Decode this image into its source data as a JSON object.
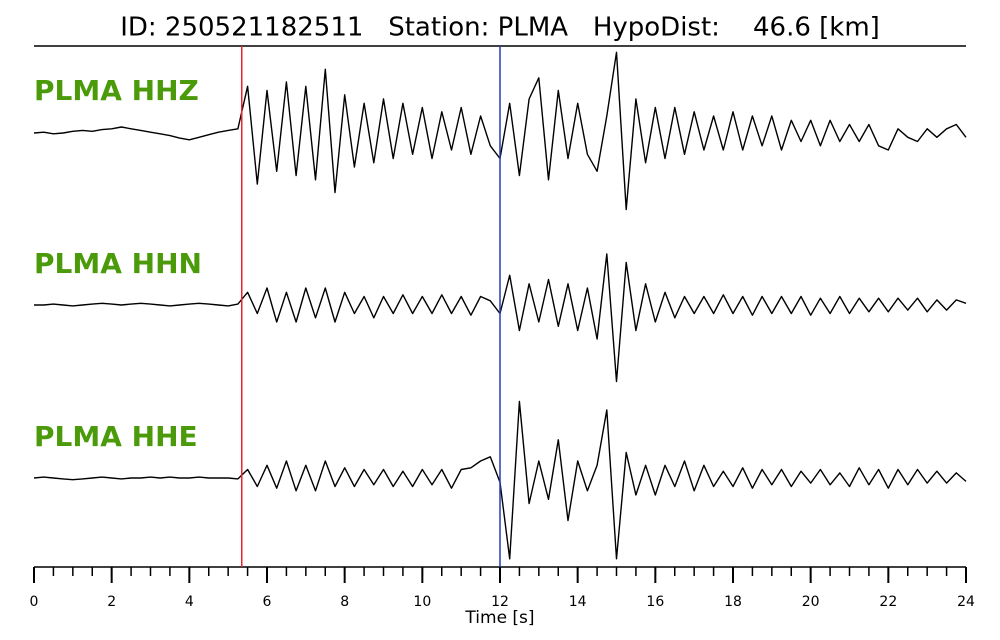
{
  "chart_data": {
    "type": "seismogram",
    "title": "ID: 250521182511   Station: PLMA   HypoDist:    46.6 [km]",
    "xlabel": "Time [s]",
    "xlim": [
      0,
      24
    ],
    "ylim": [
      -1,
      1
    ],
    "xticks": [
      0,
      2,
      4,
      6,
      8,
      10,
      12,
      14,
      16,
      18,
      20,
      22,
      24
    ],
    "xminorticks": [
      0,
      0.5,
      1,
      1.5,
      2,
      2.5,
      3,
      3.5,
      4,
      4.5,
      5,
      5.5,
      6,
      6.5,
      7,
      7.5,
      8,
      8.5,
      9,
      9.5,
      10,
      10.5,
      11,
      11.5,
      12,
      12.5,
      13,
      13.5,
      14,
      14.5,
      15,
      15.5,
      16,
      16.5,
      17,
      17.5,
      18,
      18.5,
      19,
      19.5,
      20,
      20.5,
      21,
      21.5,
      22,
      22.5,
      23,
      23.5,
      24
    ],
    "picks": [
      {
        "x": 5.35,
        "color": "#e8262a"
      },
      {
        "x": 12.0,
        "color": "#2a3ab8"
      }
    ],
    "label_color": "#4b9a0a",
    "x": [
      0,
      0.25,
      0.5,
      0.75,
      1,
      1.25,
      1.5,
      1.75,
      2,
      2.25,
      2.5,
      2.75,
      3,
      3.25,
      3.5,
      3.75,
      4,
      4.25,
      4.5,
      4.75,
      5,
      5.25,
      5.5,
      5.75,
      6,
      6.25,
      6.5,
      6.75,
      7,
      7.25,
      7.5,
      7.75,
      8,
      8.25,
      8.5,
      8.75,
      9,
      9.25,
      9.5,
      9.75,
      10,
      10.25,
      10.5,
      10.75,
      11,
      11.25,
      11.5,
      11.75,
      12,
      12.25,
      12.5,
      12.75,
      13,
      13.25,
      13.5,
      13.75,
      14,
      14.25,
      14.5,
      14.75,
      15,
      15.25,
      15.5,
      15.75,
      16,
      16.25,
      16.5,
      16.75,
      17,
      17.25,
      17.5,
      17.75,
      18,
      18.25,
      18.5,
      18.75,
      19,
      19.25,
      19.5,
      19.75,
      20,
      20.25,
      20.5,
      20.75,
      21,
      21.25,
      21.5,
      21.75,
      22,
      22.25,
      22.5,
      22.75,
      23,
      23.25,
      23.5,
      23.75,
      24
    ],
    "series": [
      {
        "name": "PLMA HHZ",
        "color": "#000000",
        "values": [
          0,
          0.01,
          -0.01,
          0,
          0.02,
          0.03,
          0.02,
          0.04,
          0.05,
          0.07,
          0.05,
          0.03,
          0.01,
          -0.01,
          -0.03,
          -0.06,
          -0.08,
          -0.05,
          -0.02,
          0.01,
          0.03,
          0.05,
          0.55,
          -0.6,
          0.5,
          -0.45,
          0.6,
          -0.5,
          0.55,
          -0.55,
          0.75,
          -0.7,
          0.45,
          -0.4,
          0.35,
          -0.35,
          0.4,
          -0.3,
          0.35,
          -0.25,
          0.3,
          -0.3,
          0.25,
          -0.2,
          0.3,
          -0.25,
          0.2,
          -0.15,
          -0.3,
          0.35,
          -0.5,
          0.4,
          0.65,
          -0.55,
          0.5,
          -0.3,
          0.35,
          -0.25,
          -0.45,
          0.2,
          0.95,
          -0.9,
          0.4,
          -0.35,
          0.3,
          -0.3,
          0.3,
          -0.25,
          0.25,
          -0.2,
          0.2,
          -0.2,
          0.25,
          -0.2,
          0.2,
          -0.15,
          0.2,
          -0.2,
          0.15,
          -0.1,
          0.15,
          -0.15,
          0.15,
          -0.1,
          0.1,
          -0.1,
          0.1,
          -0.15,
          -0.2,
          0.05,
          -0.05,
          -0.1,
          0.05,
          -0.05,
          0.05,
          0.1,
          -0.05
        ]
      },
      {
        "name": "PLMA HHN",
        "color": "#000000",
        "values": [
          0,
          0,
          0.01,
          0,
          -0.01,
          0,
          0.01,
          0.02,
          0.01,
          0,
          0.01,
          0.02,
          0.01,
          0,
          -0.01,
          0,
          0.01,
          0.02,
          0.01,
          0,
          -0.01,
          0.01,
          0.15,
          -0.1,
          0.2,
          -0.2,
          0.15,
          -0.2,
          0.2,
          -0.15,
          0.2,
          -0.2,
          0.15,
          -0.1,
          0.1,
          -0.15,
          0.1,
          -0.1,
          0.12,
          -0.1,
          0.1,
          -0.1,
          0.12,
          -0.1,
          0.1,
          -0.12,
          0.1,
          0.05,
          -0.1,
          0.35,
          -0.3,
          0.25,
          -0.2,
          0.3,
          -0.25,
          0.25,
          -0.3,
          0.2,
          -0.4,
          0.6,
          -0.9,
          0.5,
          -0.3,
          0.25,
          -0.2,
          0.15,
          -0.15,
          0.1,
          -0.1,
          0.1,
          -0.1,
          0.12,
          -0.1,
          0.1,
          -0.12,
          0.1,
          -0.1,
          0.1,
          -0.1,
          0.1,
          -0.12,
          0.08,
          -0.1,
          0.1,
          -0.1,
          0.08,
          -0.08,
          0.08,
          -0.08,
          0.08,
          -0.06,
          0.08,
          -0.08,
          0.06,
          -0.06,
          0.06,
          0.02
        ]
      },
      {
        "name": "PLMA HHE",
        "color": "#000000",
        "values": [
          0,
          0.01,
          0,
          -0.01,
          -0.02,
          -0.01,
          0,
          0.01,
          0,
          -0.01,
          0,
          0,
          0.01,
          0,
          0.01,
          0,
          0,
          0.01,
          0,
          0,
          0,
          -0.01,
          0.1,
          -0.1,
          0.15,
          -0.12,
          0.2,
          -0.15,
          0.15,
          -0.15,
          0.2,
          -0.1,
          0.12,
          -0.1,
          0.1,
          -0.08,
          0.1,
          -0.1,
          0.08,
          -0.1,
          0.1,
          -0.08,
          0.1,
          -0.12,
          0.1,
          0.12,
          0.2,
          0.25,
          -0.05,
          -0.95,
          0.9,
          -0.3,
          0.2,
          -0.25,
          0.45,
          -0.5,
          0.2,
          -0.15,
          0.15,
          0.8,
          -0.95,
          0.3,
          -0.2,
          0.15,
          -0.2,
          0.15,
          -0.1,
          0.2,
          -0.15,
          0.15,
          -0.1,
          0.08,
          -0.1,
          0.12,
          -0.12,
          0.1,
          -0.08,
          0.1,
          -0.1,
          0.08,
          -0.06,
          0.1,
          -0.08,
          0.06,
          -0.1,
          0.12,
          -0.08,
          0.1,
          -0.12,
          0.1,
          -0.08,
          0.1,
          -0.06,
          0.08,
          -0.06,
          0.06,
          -0.04
        ]
      }
    ]
  }
}
